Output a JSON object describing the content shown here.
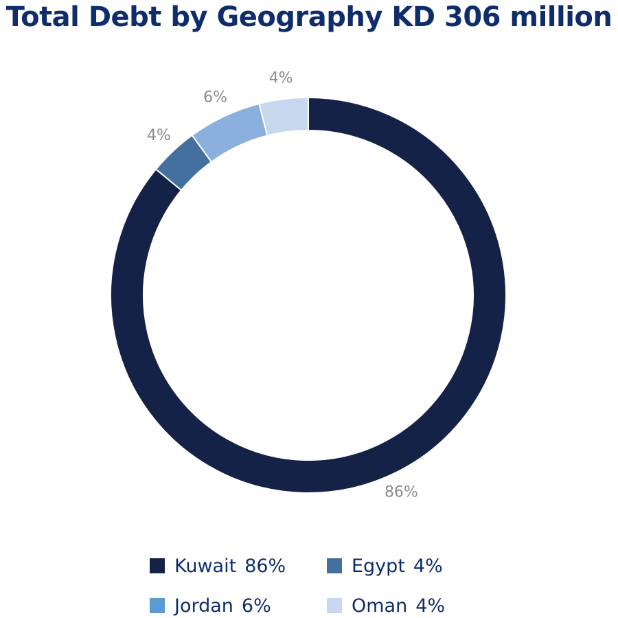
{
  "title": "Total Debt by Geography KD 306 million",
  "chart_data": {
    "type": "pie",
    "title": "Total Debt by Geography KD 306 million",
    "variant": "donut",
    "unit": "%",
    "start": "top",
    "direction": "clockwise",
    "slices": [
      {
        "name": "Kuwait",
        "value": 86,
        "label": "86%",
        "color": "#142247"
      },
      {
        "name": "Egypt",
        "value": 4,
        "label": "4%",
        "color": "#43709f"
      },
      {
        "name": "Jordan",
        "value": 6,
        "label": "6%",
        "color": "#8cb0de"
      },
      {
        "name": "Oman",
        "value": 4,
        "label": "4%",
        "color": "#c5d8ee"
      }
    ],
    "legend": {
      "placement": "bottom",
      "items": [
        {
          "name": "Kuwait",
          "value_label": "86%",
          "color": "#142247"
        },
        {
          "name": "Egypt",
          "value_label": "4%",
          "color": "#43709f"
        },
        {
          "name": "Jordan",
          "value_label": "6%",
          "color": "#5b9bd5"
        },
        {
          "name": "Oman",
          "value_label": "4%",
          "color": "#c5d8ee"
        }
      ]
    }
  }
}
